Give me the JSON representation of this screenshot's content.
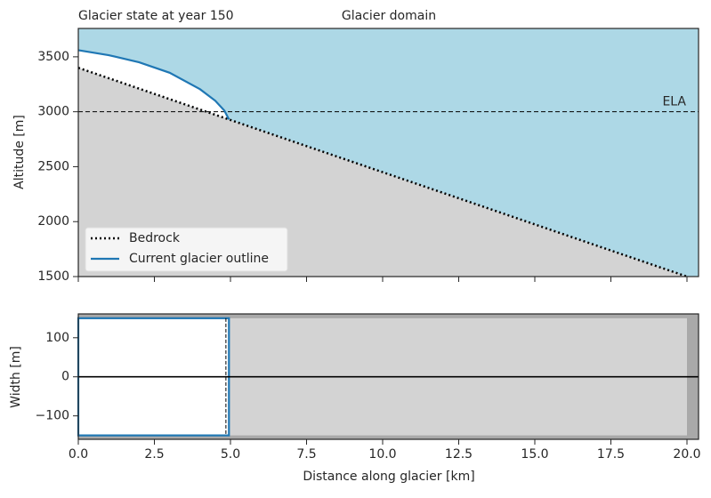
{
  "chart_data": [
    {
      "type": "glacier-profile",
      "title": "Glacier state at year 150",
      "subtitle": "Glacier domain",
      "ylabel": "Altitude [m]",
      "xlim": [
        0,
        20.38
      ],
      "ylim": [
        1500,
        3758
      ],
      "yticks": [
        1500,
        2000,
        2500,
        3000,
        3500
      ],
      "sky_color": "#add8e6",
      "bed_color": "#d3d3d3",
      "ice_color": "#ffffff",
      "hline": {
        "value": 3000,
        "label": "ELA"
      },
      "legend": "lower left",
      "series": [
        {
          "name": "Bedrock",
          "color": "#000000",
          "style": "dotted",
          "x": [
            0,
            20
          ],
          "values": [
            3400,
            1500
          ]
        },
        {
          "name": "Current glacier outline",
          "color": "#1f77b4",
          "style": "solid",
          "x": [
            0,
            1,
            2,
            3,
            4,
            4.5,
            4.8,
            4.95
          ],
          "values": [
            3560,
            3515,
            3450,
            3355,
            3205,
            3100,
            3010,
            2930
          ]
        }
      ]
    },
    {
      "type": "glacier-width",
      "xlabel": "Distance along glacier [km]",
      "ylabel": "Width [m]",
      "xlim": [
        0,
        20.38
      ],
      "ylim": [
        -160,
        161
      ],
      "xticks": [
        {
          "value": 0,
          "label": "0.0"
        },
        {
          "value": 2.5,
          "label": "2.5"
        },
        {
          "value": 5,
          "label": "5.0"
        },
        {
          "value": 7.5,
          "label": "7.5"
        },
        {
          "value": 10,
          "label": "10.0"
        },
        {
          "value": 12.5,
          "label": "12.5"
        },
        {
          "value": 15,
          "label": "15.0"
        },
        {
          "value": 17.5,
          "label": "17.5"
        },
        {
          "value": 20,
          "label": "20.0"
        }
      ],
      "yticks": [
        {
          "value": -100,
          "label": "−100"
        },
        0,
        100
      ],
      "outer_color": "#a9a9a9",
      "domain_color": "#d3d3d3",
      "domain": {
        "x": [
          0,
          20
        ],
        "values": [
          -150,
          150
        ]
      },
      "glacier": {
        "color": "#1f77b4",
        "x": [
          0,
          4.95
        ],
        "values": [
          -150,
          150
        ]
      },
      "front_marker": 4.85
    }
  ]
}
